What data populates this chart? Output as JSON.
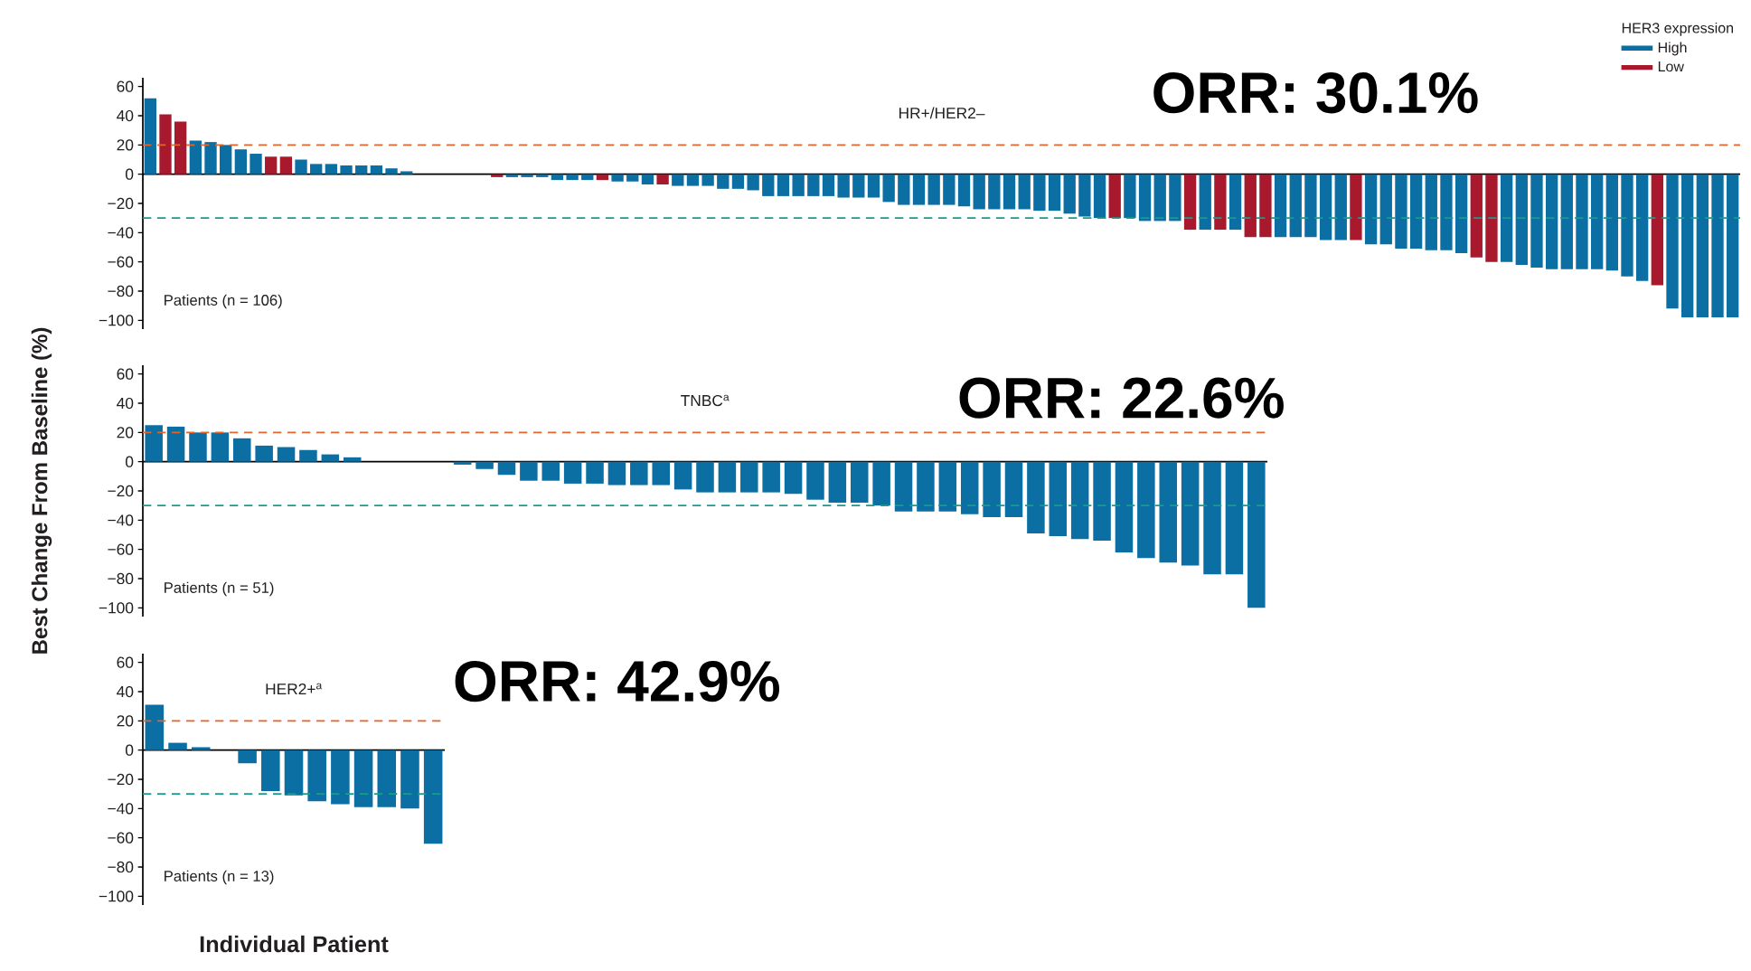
{
  "chart_data": [
    {
      "type": "bar",
      "title": "HR+/HER2–",
      "legend": "top right",
      "legend_title": "HER3 expression",
      "tick_labels": "y",
      "categories": [
        null,
        null,
        null,
        null,
        null,
        null,
        null,
        null,
        null,
        null,
        null,
        null,
        null,
        null,
        null,
        null,
        null,
        null,
        null,
        null,
        null,
        null,
        null,
        null,
        null,
        null,
        null,
        null,
        null,
        null,
        null,
        null,
        null,
        null,
        null,
        null,
        null,
        null,
        null,
        null,
        null,
        null,
        null,
        null,
        null,
        null,
        null,
        null,
        null,
        null,
        null,
        null,
        null,
        null,
        null,
        null,
        null,
        null,
        null,
        null,
        null,
        null,
        null,
        null,
        null,
        null,
        null,
        null,
        null,
        null,
        null,
        null,
        null,
        null,
        null,
        null,
        null,
        null,
        null,
        null,
        null,
        null,
        null,
        null,
        null,
        null,
        null,
        null,
        null,
        null,
        null,
        null,
        null,
        null,
        null,
        null,
        null,
        null,
        null,
        null,
        null,
        null,
        null,
        null,
        null,
        null
      ],
      "series": [
        {
          "name": "High",
          "color": "#0b6fa4",
          "values": [
            52,
            null,
            null,
            23,
            22,
            20,
            17,
            14,
            null,
            null,
            10,
            7,
            7,
            6,
            6,
            6,
            4,
            2,
            null,
            null,
            null,
            null,
            null,
            null,
            -2,
            -2,
            -2,
            -4,
            -4,
            -4,
            null,
            -5,
            -5,
            -7,
            null,
            -8,
            -8,
            -8,
            -10,
            -10,
            -11,
            -15,
            -15,
            -15,
            -15,
            -15,
            -16,
            -16,
            -16,
            -19,
            -21,
            -21,
            -21,
            -21,
            -22,
            -24,
            -24,
            -24,
            -24,
            -25,
            -25,
            -27,
            -29,
            -30,
            null,
            -30,
            -32,
            -32,
            -32,
            null,
            -38,
            null,
            -38,
            null,
            null,
            -43,
            -43,
            -43,
            -45,
            -45,
            null,
            -48,
            -48,
            -51,
            -51,
            -52,
            -52,
            -54,
            null,
            null,
            -60,
            -62,
            -64,
            -65,
            -65,
            -65,
            -65,
            -66,
            -70,
            -73,
            null,
            -92,
            -98,
            -98,
            -98,
            -98
          ]
        },
        {
          "name": "Low",
          "color": "#a8192e",
          "values": [
            null,
            41,
            36,
            null,
            null,
            null,
            null,
            null,
            12,
            12,
            null,
            null,
            null,
            null,
            null,
            null,
            null,
            null,
            null,
            null,
            null,
            null,
            null,
            -2,
            null,
            null,
            null,
            null,
            null,
            null,
            -4,
            null,
            null,
            null,
            -7,
            null,
            null,
            null,
            null,
            null,
            null,
            null,
            null,
            null,
            null,
            null,
            null,
            null,
            null,
            null,
            null,
            null,
            null,
            null,
            null,
            null,
            null,
            null,
            null,
            null,
            null,
            null,
            null,
            null,
            -30,
            null,
            null,
            null,
            null,
            -38,
            null,
            -38,
            null,
            -43,
            -43,
            null,
            null,
            null,
            null,
            null,
            -45,
            null,
            null,
            null,
            null,
            null,
            null,
            null,
            -57,
            -60,
            null,
            null,
            null,
            null,
            null,
            null,
            null,
            null,
            null,
            null,
            -76,
            null,
            null,
            null,
            null,
            null
          ]
        }
      ],
      "ylim": [
        -106,
        66
      ],
      "yticks": [
        {
          "value": -100,
          "label": "−100"
        },
        {
          "value": -80,
          "label": "−80"
        },
        {
          "value": -60,
          "label": "−60"
        },
        {
          "value": -40,
          "label": "−40"
        },
        {
          "value": -20,
          "label": "−20"
        },
        0,
        20,
        40,
        60
      ],
      "ref_lines": [
        {
          "axis": "y",
          "value": 20,
          "color": "#e0662b",
          "line_style": "dashed"
        },
        {
          "axis": "y",
          "value": -30,
          "color": "#1a9b8c",
          "line_style": "dashed"
        }
      ],
      "annotations": [
        "Patients (n = 106)",
        "ORR: 30.1%"
      ]
    },
    {
      "type": "bar",
      "title": "TNBC$^{a}$",
      "tick_labels": "y",
      "ylabel": "Best Change From Baseline (%)",
      "categories": [
        null,
        null,
        null,
        null,
        null,
        null,
        null,
        null,
        null,
        null,
        null,
        null,
        null,
        null,
        null,
        null,
        null,
        null,
        null,
        null,
        null,
        null,
        null,
        null,
        null,
        null,
        null,
        null,
        null,
        null,
        null,
        null,
        null,
        null,
        null,
        null,
        null,
        null,
        null,
        null,
        null,
        null,
        null,
        null,
        null,
        null,
        null,
        null,
        null,
        null,
        null
      ],
      "series": [
        {
          "color": "#0b6fa4",
          "values": [
            25,
            24,
            20,
            20,
            16,
            11,
            10,
            8,
            5,
            3,
            null,
            null,
            null,
            null,
            -2,
            -5,
            -9,
            -13,
            -13,
            -15,
            -15,
            -16,
            -16,
            -16,
            -19,
            -21,
            -21,
            -21,
            -21,
            -22,
            -26,
            -28,
            -28,
            -30,
            -34,
            -34,
            -34,
            -36,
            -38,
            -38,
            -49,
            -51,
            -53,
            -54,
            -62,
            -66,
            -69,
            -71,
            -77,
            -77,
            -100
          ]
        }
      ],
      "ylim": [
        -106,
        66
      ],
      "yticks": [
        {
          "value": -100,
          "label": "−100"
        },
        {
          "value": -80,
          "label": "−80"
        },
        {
          "value": -60,
          "label": "−60"
        },
        {
          "value": -40,
          "label": "−40"
        },
        {
          "value": -20,
          "label": "−20"
        },
        0,
        20,
        40,
        60
      ],
      "ref_lines": [
        {
          "axis": "y",
          "value": 20,
          "color": "#e0662b",
          "line_style": "dashed"
        },
        {
          "axis": "y",
          "value": -30,
          "color": "#1a9b8c",
          "line_style": "dashed"
        }
      ],
      "annotations": [
        "Patients (n = 51)",
        "ORR: 22.6%"
      ]
    },
    {
      "type": "bar",
      "title": "HER2+$^{a}$",
      "tick_labels": "y",
      "xlabel": "Individual Patient",
      "categories": [
        null,
        null,
        null,
        null,
        null,
        null,
        null,
        null,
        null,
        null,
        null,
        null,
        null
      ],
      "series": [
        {
          "color": "#0b6fa4",
          "values": [
            31,
            5,
            2,
            null,
            -9,
            -28,
            -31,
            -35,
            -37,
            -39,
            -39,
            -40,
            -64
          ]
        }
      ],
      "ylim": [
        -106,
        66
      ],
      "yticks": [
        {
          "value": -100,
          "label": "−100"
        },
        {
          "value": -80,
          "label": "−80"
        },
        {
          "value": -60,
          "label": "−60"
        },
        {
          "value": -40,
          "label": "−40"
        },
        {
          "value": -20,
          "label": "−20"
        },
        0,
        20,
        40,
        60
      ],
      "ref_lines": [
        {
          "axis": "y",
          "value": 20,
          "color": "#e0662b",
          "line_style": "dashed"
        },
        {
          "axis": "y",
          "value": -30,
          "color": "#1a9b8c",
          "line_style": "dashed"
        }
      ],
      "annotations": [
        "Patients (n = 13)",
        "ORR: 42.9%"
      ]
    }
  ]
}
